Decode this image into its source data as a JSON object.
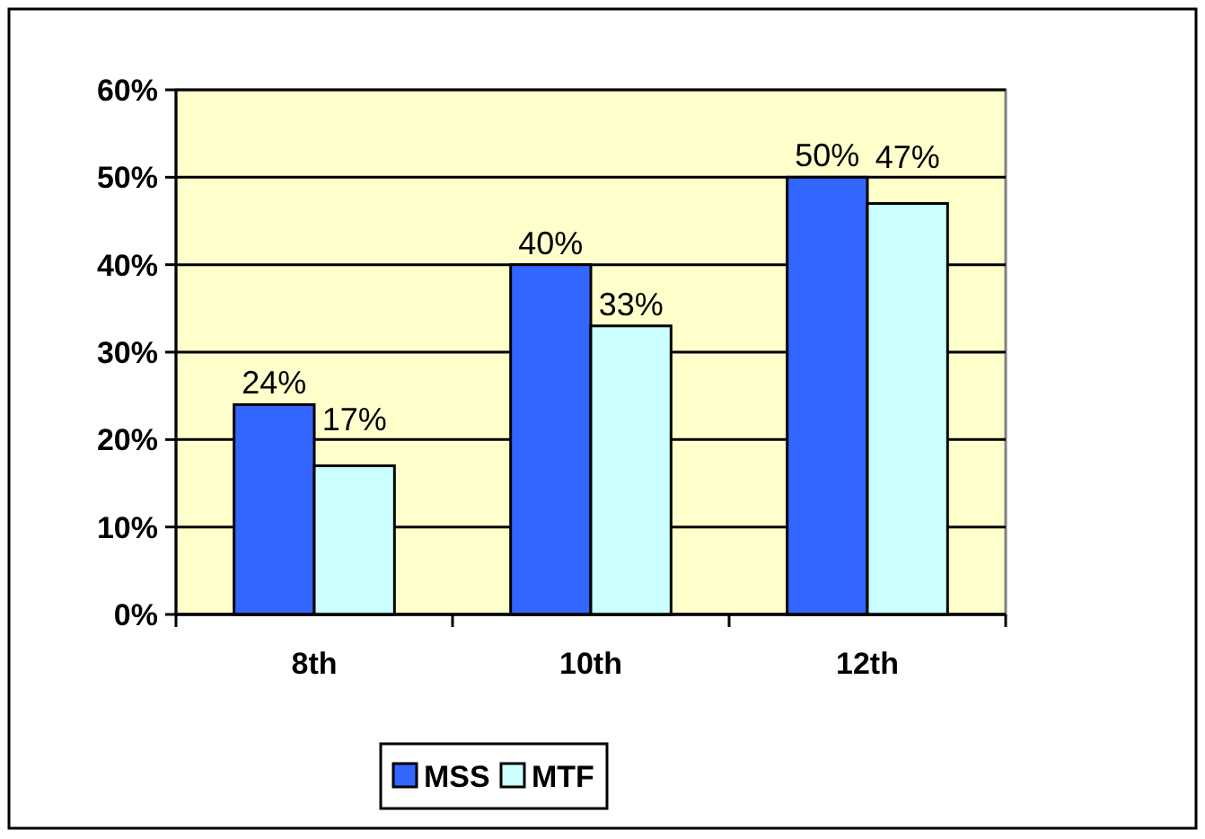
{
  "chart_data": {
    "type": "bar",
    "categories": [
      "8th",
      "10th",
      "12th"
    ],
    "series": [
      {
        "name": "MSS",
        "color": "#3366ff",
        "values": [
          24,
          40,
          50
        ],
        "value_labels": [
          "24%",
          "40%",
          "50%"
        ]
      },
      {
        "name": "MTF",
        "color": "#ccffff",
        "values": [
          17,
          33,
          47
        ],
        "value_labels": [
          "17%",
          "33%",
          "47%"
        ]
      }
    ],
    "ylim": [
      0,
      60
    ],
    "yticks": [
      {
        "value": 0,
        "label": "0%"
      },
      {
        "value": 10,
        "label": "10%"
      },
      {
        "value": 20,
        "label": "20%"
      },
      {
        "value": 30,
        "label": "30%"
      },
      {
        "value": 40,
        "label": "40%"
      },
      {
        "value": 50,
        "label": "50%"
      },
      {
        "value": 60,
        "label": "60%"
      }
    ],
    "grid": "y",
    "legend": "bottom"
  }
}
